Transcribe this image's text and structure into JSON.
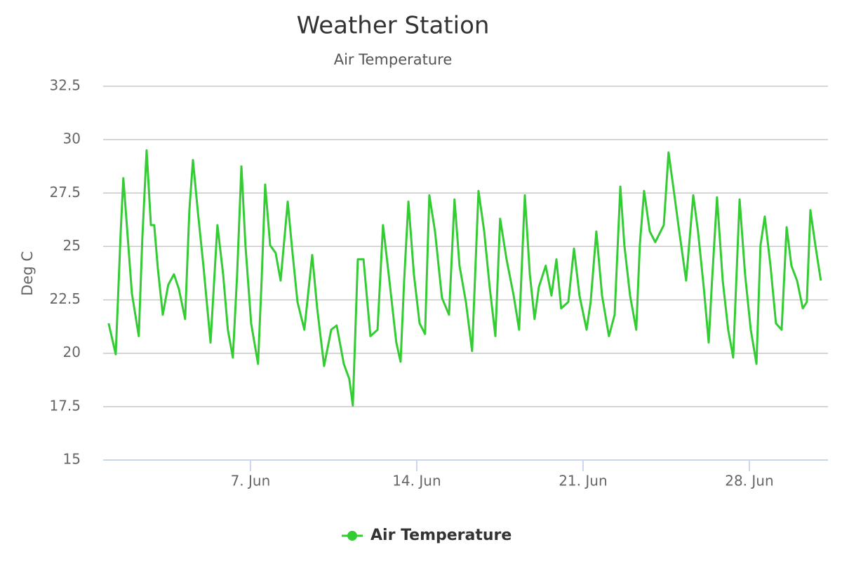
{
  "chart_data": {
    "type": "line",
    "title": "Weather Station",
    "subtitle": "Air Temperature",
    "y_label": "Deg C",
    "x": [
      1.03,
      1.33,
      1.54,
      1.65,
      1.77,
      2.01,
      2.3,
      2.45,
      2.63,
      2.81,
      2.95,
      3.1,
      3.31,
      3.54,
      3.78,
      3.99,
      4.25,
      4.43,
      4.58,
      4.78,
      5.02,
      5.32,
      5.61,
      5.85,
      6.05,
      6.26,
      6.44,
      6.62,
      6.79,
      7.03,
      7.32,
      7.47,
      7.62,
      7.83,
      8.06,
      8.27,
      8.57,
      8.74,
      8.98,
      9.27,
      9.6,
      9.81,
      10.1,
      10.4,
      10.63,
      10.93,
      11.16,
      11.31,
      11.52,
      11.76,
      12.05,
      12.35,
      12.58,
      12.85,
      13.14,
      13.32,
      13.47,
      13.65,
      13.88,
      14.12,
      14.35,
      14.53,
      14.77,
      15.06,
      15.36,
      15.59,
      15.8,
      16.07,
      16.33,
      16.6,
      16.84,
      17.07,
      17.31,
      17.51,
      17.78,
      18.08,
      18.31,
      18.55,
      18.76,
      18.96,
      19.14,
      19.43,
      19.67,
      19.88,
      20.08,
      20.38,
      20.62,
      20.85,
      21.15,
      21.32,
      21.56,
      21.8,
      22.09,
      22.33,
      22.57,
      22.74,
      22.98,
      23.24,
      23.39,
      23.57,
      23.81,
      24.04,
      24.4,
      24.6,
      24.81,
      25.05,
      25.34,
      25.64,
      25.84,
      26.08,
      26.29,
      26.43,
      26.64,
      26.88,
      27.11,
      27.32,
      27.59,
      27.82,
      28.06,
      28.3,
      28.47,
      28.65,
      28.89,
      29.12,
      29.36,
      29.57,
      29.77,
      30.01,
      30.25,
      30.42,
      30.57,
      30.78,
      31.01
    ],
    "series": [
      {
        "name": "Air Temperature",
        "color": "#33cc33",
        "values": [
          21.4,
          19.95,
          25.7,
          28.2,
          26.4,
          22.8,
          20.8,
          25.4,
          29.5,
          26,
          26,
          24,
          21.8,
          23.2,
          23.7,
          23,
          21.6,
          26.7,
          29.05,
          26.7,
          24.1,
          20.5,
          26,
          23.7,
          21.1,
          19.8,
          23.7,
          28.75,
          25.05,
          21.4,
          19.5,
          23.4,
          27.9,
          25.05,
          24.7,
          23.4,
          27.1,
          25.05,
          22.4,
          21.1,
          24.6,
          22.1,
          19.4,
          21.1,
          21.3,
          19.5,
          18.8,
          17.55,
          24.4,
          24.4,
          20.8,
          21.1,
          26,
          23.4,
          20.5,
          19.6,
          23.4,
          27.1,
          23.7,
          21.4,
          20.9,
          27.4,
          25.7,
          22.6,
          21.8,
          27.2,
          24.1,
          22.4,
          20.1,
          27.6,
          25.7,
          23.1,
          20.8,
          26.3,
          24.4,
          22.7,
          21.1,
          27.4,
          23.7,
          21.6,
          23.1,
          24.1,
          22.7,
          24.4,
          22.1,
          22.4,
          24.9,
          22.7,
          21.1,
          22.4,
          25.7,
          22.7,
          20.8,
          21.8,
          27.8,
          25.05,
          22.7,
          21.1,
          25.05,
          27.6,
          25.7,
          25.2,
          26,
          29.4,
          27.7,
          25.7,
          23.4,
          27.4,
          25.7,
          23.1,
          20.5,
          23.4,
          27.3,
          23.4,
          21.1,
          19.8,
          27.2,
          23.7,
          21.1,
          19.5,
          25.05,
          26.4,
          24.1,
          21.4,
          21.1,
          25.9,
          24.1,
          23.4,
          22.1,
          22.4,
          26.7,
          25.05,
          23.4
        ]
      }
    ],
    "xlim": [
      0.8,
      31.31
    ],
    "xticks": [
      {
        "value": 7,
        "label": "7. Jun"
      },
      {
        "value": 14,
        "label": "14. Jun"
      },
      {
        "value": 21,
        "label": "21. Jun"
      },
      {
        "value": 28,
        "label": "28. Jun"
      }
    ],
    "ylim": [
      15,
      32.5
    ],
    "yticks": [
      15,
      17.5,
      20,
      22.5,
      25,
      27.5,
      30,
      32.5
    ],
    "grid": true
  }
}
